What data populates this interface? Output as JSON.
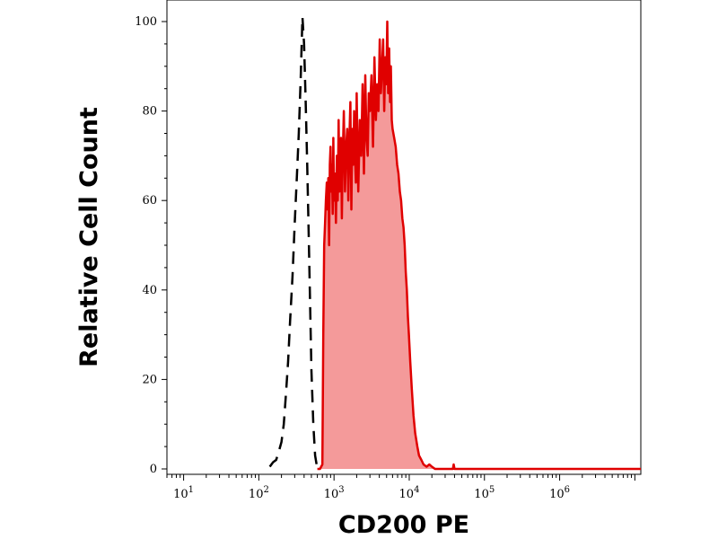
{
  "chart_data": {
    "type": "area",
    "title": "",
    "xlabel": "CD200 PE",
    "ylabel": "Relative Cell Count",
    "xscale": "log",
    "xlim": [
      6,
      12000000
    ],
    "ylim": [
      0,
      100
    ],
    "grid": false,
    "legend": "none",
    "x_ticks": [
      {
        "base": "10",
        "exp": "1",
        "value": 10
      },
      {
        "base": "10",
        "exp": "2",
        "value": 100
      },
      {
        "base": "10",
        "exp": "3",
        "value": 1000
      },
      {
        "base": "10",
        "exp": "4",
        "value": 10000
      },
      {
        "base": "10",
        "exp": "5",
        "value": 100000
      },
      {
        "base": "10",
        "exp": "6",
        "value": 1000000
      }
    ],
    "y_ticks": [
      "0",
      "20",
      "40",
      "60",
      "80",
      "100"
    ],
    "series": [
      {
        "style": "dashed",
        "color": "#000000",
        "fill": "none",
        "x": [
          140,
          155,
          170,
          185,
          200,
          215,
          230,
          245,
          260,
          280,
          300,
          320,
          340,
          360,
          380,
          400,
          420,
          440,
          460,
          480,
          500,
          530,
          560,
          600
        ],
        "y": [
          0.5,
          1.5,
          2,
          4,
          6,
          10,
          17,
          24,
          33,
          43,
          55,
          65,
          75,
          87,
          101,
          95,
          82,
          68,
          53,
          37,
          22,
          10,
          3,
          0
        ]
      },
      {
        "style": "solid",
        "color": "#e00000",
        "fill": "#f49a9a",
        "x": [
          600,
          650,
          700,
          720,
          740,
          760,
          780,
          800,
          820,
          840,
          860,
          880,
          900,
          920,
          940,
          960,
          980,
          1000,
          1030,
          1060,
          1090,
          1120,
          1150,
          1180,
          1210,
          1240,
          1270,
          1300,
          1350,
          1400,
          1450,
          1500,
          1550,
          1600,
          1650,
          1700,
          1750,
          1800,
          1850,
          1900,
          1950,
          2000,
          2100,
          2200,
          2300,
          2400,
          2500,
          2600,
          2700,
          2800,
          2900,
          3000,
          3150,
          3300,
          3450,
          3600,
          3750,
          3900,
          4050,
          4200,
          4350,
          4500,
          4650,
          4800,
          4950,
          5100,
          5250,
          5400,
          5550,
          5700,
          5850,
          6000,
          6300,
          6600,
          6900,
          7200,
          7500,
          7800,
          8100,
          8400,
          8700,
          9000,
          9300,
          9600,
          9900,
          10300,
          10800,
          11400,
          12000,
          12800,
          13500,
          14500,
          15500,
          17000,
          18500,
          20000,
          22000,
          30000,
          38000,
          39000,
          40000,
          60000,
          100000,
          1000000,
          12000000
        ],
        "y": [
          0,
          0,
          1,
          30,
          50,
          55,
          60,
          64,
          58,
          65,
          50,
          68,
          72,
          62,
          68,
          57,
          74,
          60,
          66,
          55,
          70,
          60,
          78,
          62,
          66,
          74,
          56,
          68,
          80,
          62,
          72,
          76,
          60,
          74,
          82,
          58,
          76,
          68,
          80,
          70,
          64,
          84,
          62,
          78,
          70,
          86,
          66,
          88,
          74,
          70,
          84,
          80,
          88,
          72,
          92,
          78,
          86,
          80,
          96,
          84,
          90,
          96,
          80,
          92,
          86,
          100,
          84,
          94,
          82,
          90,
          78,
          76,
          74,
          72,
          68,
          66,
          62,
          60,
          56,
          54,
          50,
          44,
          40,
          34,
          30,
          24,
          18,
          12,
          8,
          5,
          3,
          2,
          1,
          0.5,
          1,
          0.5,
          0,
          0,
          0,
          1,
          0,
          0,
          0,
          0,
          0
        ]
      }
    ]
  }
}
